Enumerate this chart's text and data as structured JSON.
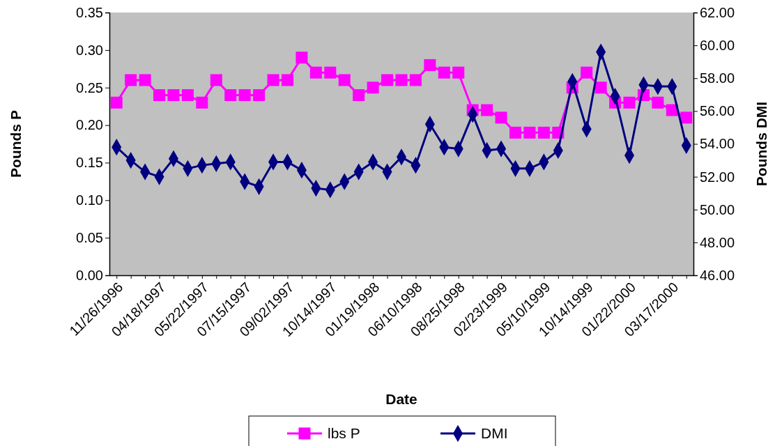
{
  "chart_data": {
    "type": "line",
    "xlabel": "Date",
    "ylabel": "Pounds P",
    "y2label": "Pounds DMI",
    "categories": [
      "11/26/1996",
      null,
      null,
      "04/18/1997",
      null,
      null,
      "05/22/1997",
      null,
      null,
      "07/15/1997",
      null,
      null,
      "09/02/1997",
      null,
      null,
      "10/14/1997",
      null,
      null,
      "01/19/1998",
      null,
      null,
      "06/10/1998",
      null,
      null,
      "08/25/1998",
      null,
      null,
      "02/23/1999",
      null,
      null,
      "05/10/1999",
      null,
      null,
      "10/14/1999",
      null,
      null,
      "01/22/2000",
      null,
      null,
      "03/17/2000",
      null
    ],
    "series": [
      {
        "name": "lbs P",
        "color": "#ff00ff",
        "marker": "square",
        "values": [
          0.23,
          0.26,
          0.26,
          0.24,
          0.24,
          0.24,
          0.23,
          0.26,
          0.24,
          0.24,
          0.24,
          0.26,
          0.26,
          0.29,
          0.27,
          0.27,
          0.26,
          0.24,
          0.25,
          0.26,
          0.26,
          0.26,
          0.28,
          0.27,
          0.27,
          0.22,
          0.22,
          0.21,
          0.19,
          0.19,
          0.19,
          0.19,
          0.25,
          0.27,
          0.25,
          0.23,
          0.23,
          0.24,
          0.23,
          0.22,
          0.21
        ]
      },
      {
        "name": "DMI",
        "color": "#000080",
        "marker": "diamond",
        "axis": "y2",
        "values": [
          53.8,
          53.0,
          52.3,
          52.0,
          53.1,
          52.5,
          52.7,
          52.8,
          52.9,
          51.7,
          51.4,
          52.9,
          52.9,
          52.4,
          51.3,
          51.2,
          51.7,
          52.3,
          52.9,
          52.3,
          53.2,
          52.7,
          55.2,
          53.8,
          53.7,
          55.8,
          53.6,
          53.7,
          52.5,
          52.5,
          52.9,
          53.6,
          57.8,
          54.9,
          59.6,
          56.9,
          53.3,
          57.6,
          57.5,
          57.5,
          53.9
        ]
      }
    ],
    "ylim": [
      0,
      0.35
    ],
    "yticks": [
      {
        "value": 0,
        "label": "0.00"
      },
      {
        "value": 0.05,
        "label": "0.05"
      },
      {
        "value": 0.1,
        "label": "0.10"
      },
      {
        "value": 0.15,
        "label": "0.15"
      },
      {
        "value": 0.2,
        "label": "0.20"
      },
      {
        "value": 0.25,
        "label": "0.25"
      },
      {
        "value": 0.3,
        "label": "0.30"
      },
      {
        "value": 0.35,
        "label": "0.35"
      }
    ],
    "y2lim": [
      46,
      62
    ],
    "y2ticks": [
      {
        "value": 46,
        "label": "46.00"
      },
      {
        "value": 48,
        "label": "48.00"
      },
      {
        "value": 50,
        "label": "50.00"
      },
      {
        "value": 52,
        "label": "52.00"
      },
      {
        "value": 54,
        "label": "54.00"
      },
      {
        "value": 56,
        "label": "56.00"
      },
      {
        "value": 58,
        "label": "58.00"
      },
      {
        "value": 60,
        "label": "60.00"
      },
      {
        "value": 62,
        "label": "62.00"
      }
    ],
    "grid": false,
    "legend": "bottom",
    "line_style": "solid"
  }
}
